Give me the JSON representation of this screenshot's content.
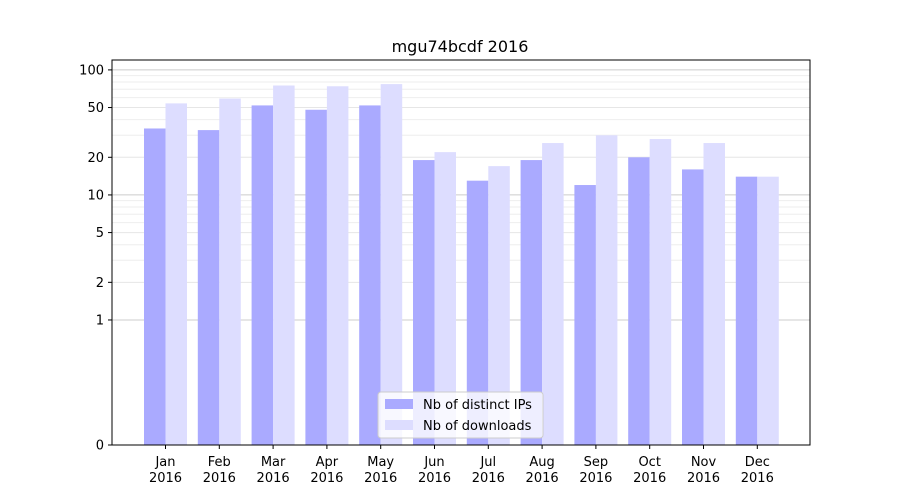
{
  "chart_data": {
    "type": "bar",
    "title": "mgu74bcdf 2016",
    "xlabel": "",
    "ylabel": "",
    "yscale": "symlog",
    "ylim": [
      0,
      120
    ],
    "yticks": [
      0,
      1,
      2,
      5,
      10,
      20,
      50,
      100
    ],
    "ytick_labels": [
      "0",
      "1",
      "2",
      "5",
      "10",
      "20",
      "50",
      "100"
    ],
    "grid": "y",
    "legend_position": "bottom-center",
    "categories": [
      [
        "Jan",
        "2016"
      ],
      [
        "Feb",
        "2016"
      ],
      [
        "Mar",
        "2016"
      ],
      [
        "Apr",
        "2016"
      ],
      [
        "May",
        "2016"
      ],
      [
        "Jun",
        "2016"
      ],
      [
        "Jul",
        "2016"
      ],
      [
        "Aug",
        "2016"
      ],
      [
        "Sep",
        "2016"
      ],
      [
        "Oct",
        "2016"
      ],
      [
        "Nov",
        "2016"
      ],
      [
        "Dec",
        "2016"
      ]
    ],
    "series": [
      {
        "name": "Nb of distinct IPs",
        "color": "#aaaaff",
        "values": [
          34,
          33,
          52,
          48,
          52,
          19,
          13,
          19,
          12,
          20,
          16,
          14
        ]
      },
      {
        "name": "Nb of downloads",
        "color": "#ddddff",
        "values": [
          54,
          59,
          75,
          74,
          77,
          22,
          17,
          26,
          30,
          28,
          26,
          14
        ]
      }
    ]
  }
}
